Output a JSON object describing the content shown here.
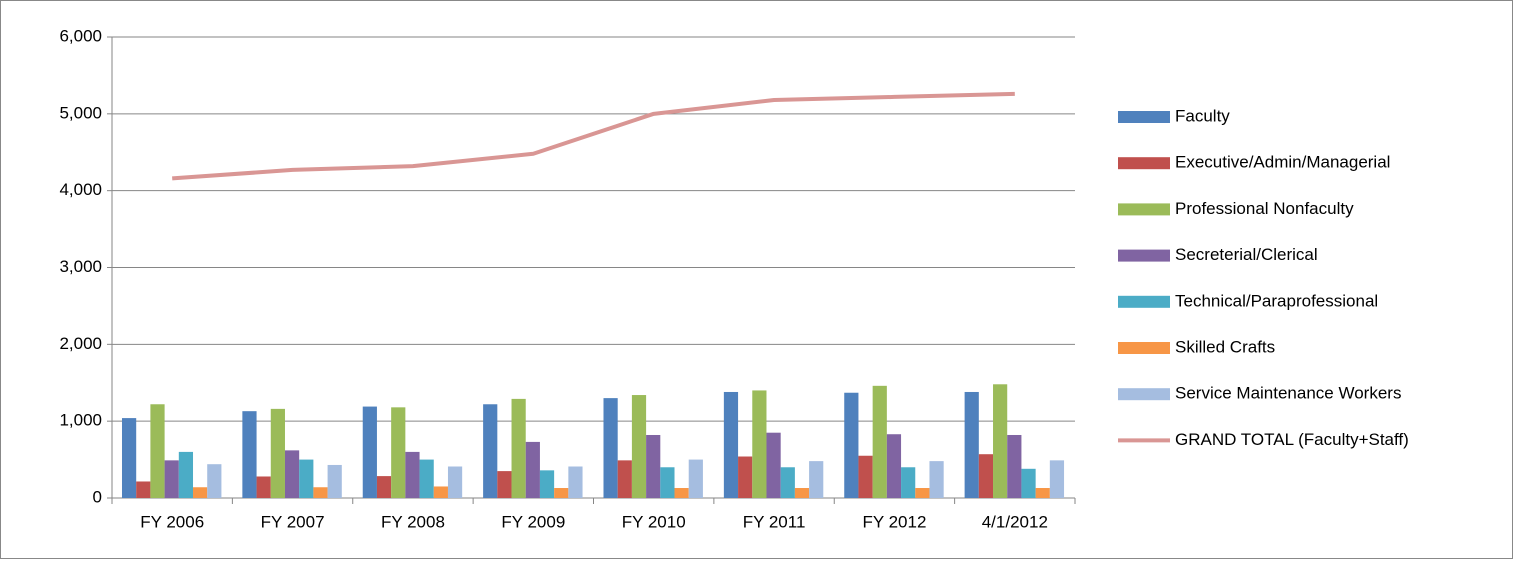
{
  "chart_data": {
    "type": "bar",
    "categories": [
      "FY 2006",
      "FY 2007",
      "FY 2008",
      "FY 2009",
      "FY 2010",
      "FY 2011",
      "FY 2012",
      "4/1/2012"
    ],
    "series": [
      {
        "name": "Faculty",
        "color": "#4f81bd",
        "values": [
          1040,
          1130,
          1190,
          1220,
          1300,
          1380,
          1370,
          1380
        ]
      },
      {
        "name": "Executive/Admin/Managerial",
        "color": "#c0504d",
        "values": [
          215,
          280,
          285,
          350,
          490,
          540,
          550,
          570
        ]
      },
      {
        "name": "Professional Nonfaculty",
        "color": "#9bbb59",
        "values": [
          1220,
          1160,
          1180,
          1290,
          1340,
          1400,
          1460,
          1480
        ]
      },
      {
        "name": "Secreterial/Clerical",
        "color": "#8064a2",
        "values": [
          490,
          620,
          600,
          730,
          820,
          850,
          830,
          820
        ]
      },
      {
        "name": "Technical/Paraprofessional",
        "color": "#4bacc6",
        "values": [
          600,
          500,
          500,
          360,
          400,
          400,
          400,
          380
        ]
      },
      {
        "name": "Skilled Crafts",
        "color": "#f79646",
        "values": [
          140,
          140,
          150,
          130,
          130,
          130,
          130,
          130
        ]
      },
      {
        "name": "Service Maintenance Workers",
        "color": "#a5bde0",
        "values": [
          440,
          430,
          410,
          410,
          500,
          480,
          480,
          490
        ]
      },
      {
        "name": "GRAND TOTAL (Faculty+Staff)",
        "color": "#d99694",
        "type": "line",
        "values": [
          4160,
          4270,
          4320,
          4480,
          5000,
          5180,
          5220,
          5260
        ]
      }
    ],
    "ylim": [
      0,
      6000
    ],
    "yticks": [
      0,
      {
        "value": 1000,
        "label": "1,000"
      },
      {
        "value": 2000,
        "label": "2,000"
      },
      {
        "value": 3000,
        "label": "3,000"
      },
      {
        "value": 4000,
        "label": "4,000"
      },
      {
        "value": 5000,
        "label": "5,000"
      },
      {
        "value": 6000,
        "label": "6,000"
      }
    ],
    "grid": true,
    "legend": "right"
  }
}
